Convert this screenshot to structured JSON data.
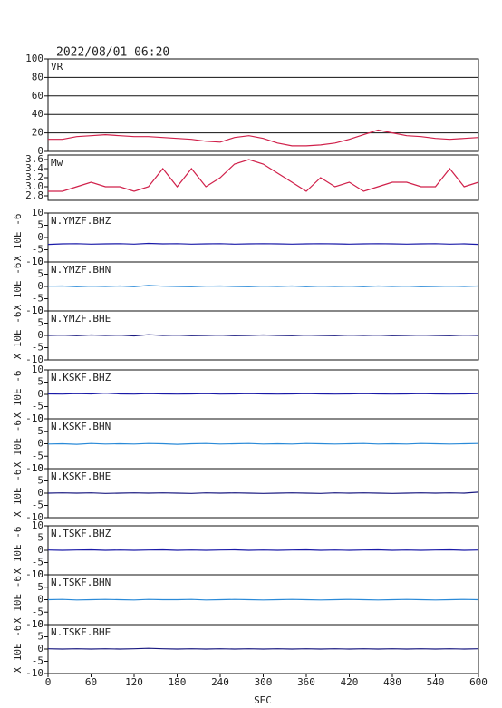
{
  "chart_data": {
    "type": "line",
    "title": "2022/08/01 06:20",
    "xlabel": "SEC",
    "xlim": [
      0,
      600
    ],
    "xticks": [
      0,
      60,
      120,
      180,
      240,
      300,
      360,
      420,
      480,
      540,
      600
    ],
    "x": [
      0,
      20,
      40,
      60,
      80,
      100,
      120,
      140,
      160,
      180,
      200,
      220,
      240,
      260,
      280,
      300,
      320,
      340,
      360,
      380,
      400,
      420,
      440,
      460,
      480,
      500,
      520,
      540,
      560,
      580,
      600
    ],
    "panels": [
      {
        "type": "line",
        "label": "VR",
        "color": "#d0204a",
        "ylim": [
          0,
          100
        ],
        "yticks": [
          0,
          20,
          40,
          60,
          80,
          100
        ],
        "grid": true,
        "values": [
          13,
          13,
          16,
          17,
          18,
          17,
          16,
          16,
          15,
          14,
          13,
          11,
          10,
          15,
          17,
          14,
          9,
          6,
          6,
          7,
          9,
          13,
          18,
          23,
          20,
          17,
          16,
          14,
          13,
          14,
          15
        ]
      },
      {
        "type": "line",
        "label": "Mw",
        "color": "#d0204a",
        "ylim": [
          2.7,
          3.7
        ],
        "yticks": [
          {
            "value": 2.8,
            "label": "2.8"
          },
          {
            "value": 3.0,
            "label": "3.0"
          },
          {
            "value": 3.2,
            "label": "3.2"
          },
          {
            "value": 3.4,
            "label": "3.4"
          },
          {
            "value": 3.6,
            "label": "3.6"
          }
        ],
        "grid": false,
        "values": [
          2.9,
          2.9,
          3.0,
          3.1,
          3.0,
          3.0,
          2.9,
          3.0,
          3.4,
          3.0,
          3.4,
          3.0,
          3.2,
          3.5,
          3.6,
          3.5,
          3.3,
          3.1,
          2.9,
          3.2,
          3.0,
          3.1,
          2.9,
          3.0,
          3.1,
          3.1,
          3.0,
          3.0,
          3.4,
          3.0,
          3.1
        ]
      },
      {
        "type": "line",
        "label": "N.YMZF.BHZ",
        "ylabel": "X 10E -6",
        "color": "#1a1aa8",
        "ylim": [
          -10,
          10
        ],
        "yticks": [
          -10,
          -5,
          0,
          5,
          10
        ],
        "grid": false,
        "values": [
          -2.8,
          -2.6,
          -2.5,
          -2.7,
          -2.6,
          -2.5,
          -2.7,
          -2.4,
          -2.6,
          -2.5,
          -2.7,
          -2.6,
          -2.5,
          -2.7,
          -2.6,
          -2.5,
          -2.6,
          -2.7,
          -2.6,
          -2.5,
          -2.6,
          -2.7,
          -2.6,
          -2.5,
          -2.6,
          -2.7,
          -2.6,
          -2.5,
          -2.7,
          -2.6,
          -2.8
        ]
      },
      {
        "type": "line",
        "label": "N.YMZF.BHN",
        "ylabel": "X 10E -6",
        "color": "#2a8ad8",
        "ylim": [
          -10,
          10
        ],
        "yticks": [
          -10,
          -5,
          0,
          5,
          10
        ],
        "grid": false,
        "values": [
          0.1,
          0.2,
          -0.1,
          0.1,
          0,
          0.2,
          -0.1,
          0.4,
          0.1,
          0,
          -0.1,
          0.1,
          0.2,
          0,
          -0.1,
          0.1,
          0,
          0.2,
          -0.1,
          0.1,
          0,
          0.1,
          -0.1,
          0.2,
          0,
          0.1,
          -0.1,
          0,
          0.1,
          0,
          0.2
        ]
      },
      {
        "type": "line",
        "label": "N.YMZF.BHE",
        "ylabel": "X 10E -6",
        "color": "#1a1a80",
        "ylim": [
          -10,
          10
        ],
        "yticks": [
          -10,
          -5,
          0,
          5,
          10
        ],
        "grid": false,
        "values": [
          0,
          0.1,
          -0.1,
          0.2,
          0,
          0.1,
          -0.2,
          0.3,
          0,
          0.1,
          -0.1,
          0,
          0.1,
          -0.1,
          0,
          0.2,
          0,
          -0.1,
          0.1,
          0,
          -0.1,
          0.1,
          0,
          0.1,
          -0.1,
          0,
          0.1,
          0,
          -0.1,
          0.1,
          0
        ]
      },
      {
        "type": "line",
        "label": "N.KSKF.BHZ",
        "ylabel": "X 10E -6",
        "color": "#1a1aa8",
        "ylim": [
          -10,
          10
        ],
        "yticks": [
          -10,
          -5,
          0,
          5,
          10
        ],
        "grid": false,
        "values": [
          0.2,
          0.1,
          0.3,
          0.2,
          0.5,
          0.2,
          0.1,
          0.3,
          0.2,
          0.1,
          0.2,
          0.3,
          0.1,
          0.2,
          0.3,
          0.2,
          0.1,
          0.2,
          0.3,
          0.2,
          0.1,
          0.2,
          0.3,
          0.2,
          0.1,
          0.2,
          0.3,
          0.2,
          0.1,
          0.2,
          0.3
        ]
      },
      {
        "type": "line",
        "label": "N.KSKF.BHN",
        "ylabel": "X 10E -6",
        "color": "#2a8ad8",
        "ylim": [
          -10,
          10
        ],
        "yticks": [
          -10,
          -5,
          0,
          5,
          10
        ],
        "grid": false,
        "values": [
          -0.1,
          0,
          -0.2,
          0.1,
          -0.1,
          0,
          -0.1,
          0.1,
          0,
          -0.2,
          0,
          0.1,
          -0.1,
          0,
          0.1,
          -0.1,
          0,
          -0.1,
          0.1,
          0,
          -0.1,
          0,
          0.1,
          -0.1,
          0,
          -0.1,
          0.1,
          0,
          -0.1,
          0,
          0.1
        ]
      },
      {
        "type": "line",
        "label": "N.KSKF.BHE",
        "ylabel": "X 10E -6",
        "color": "#1a1a80",
        "ylim": [
          -10,
          10
        ],
        "yticks": [
          -10,
          -5,
          0,
          5,
          10
        ],
        "grid": false,
        "values": [
          0,
          0.1,
          0,
          0.1,
          -0.1,
          0,
          0.1,
          0,
          0.1,
          0,
          -0.1,
          0.1,
          0,
          0.1,
          0,
          -0.1,
          0,
          0.1,
          0,
          -0.1,
          0.1,
          0,
          0.1,
          0,
          -0.1,
          0,
          0.1,
          0,
          0.1,
          0,
          0.4
        ]
      },
      {
        "type": "line",
        "label": "N.TSKF.BHZ",
        "ylabel": "X 10E -6",
        "color": "#1a1aa8",
        "ylim": [
          -10,
          10
        ],
        "yticks": [
          -10,
          -5,
          0,
          5,
          10
        ],
        "grid": false,
        "values": [
          0.1,
          0,
          0.1,
          0.2,
          0,
          0.1,
          0,
          0.1,
          0.2,
          0,
          0.1,
          0,
          0.1,
          0.2,
          0,
          0.1,
          0,
          0.1,
          0.2,
          0,
          0.1,
          0,
          0.1,
          0.2,
          0,
          0.1,
          0,
          0.1,
          0.2,
          0,
          0.1
        ]
      },
      {
        "type": "line",
        "label": "N.TSKF.BHN",
        "ylabel": "X 10E -6",
        "color": "#2a8ad8",
        "ylim": [
          -10,
          10
        ],
        "yticks": [
          -10,
          -5,
          0,
          5,
          10
        ],
        "grid": false,
        "values": [
          0,
          0.1,
          -0.1,
          0,
          0.1,
          0,
          -0.1,
          0.1,
          0,
          0,
          0.1,
          -0.1,
          0,
          0.1,
          0,
          -0.1,
          0,
          0.1,
          0,
          -0.1,
          0,
          0.1,
          0,
          -0.1,
          0,
          0.1,
          0,
          -0.1,
          0,
          0.1,
          0
        ]
      },
      {
        "type": "line",
        "label": "N.TSKF.BHE",
        "ylabel": "X 10E -6",
        "color": "#1a1a80",
        "ylim": [
          -10,
          10
        ],
        "yticks": [
          -10,
          -5,
          0,
          5,
          10
        ],
        "grid": false,
        "values": [
          0.1,
          0,
          0.1,
          0,
          0.1,
          0,
          0.1,
          0.3,
          0.1,
          0,
          0.1,
          0,
          0.1,
          0,
          0.1,
          0,
          0.1,
          0,
          0.1,
          0,
          0.1,
          0,
          0.1,
          0,
          0.1,
          0,
          0.1,
          0,
          0.1,
          0,
          0.1
        ]
      }
    ]
  }
}
